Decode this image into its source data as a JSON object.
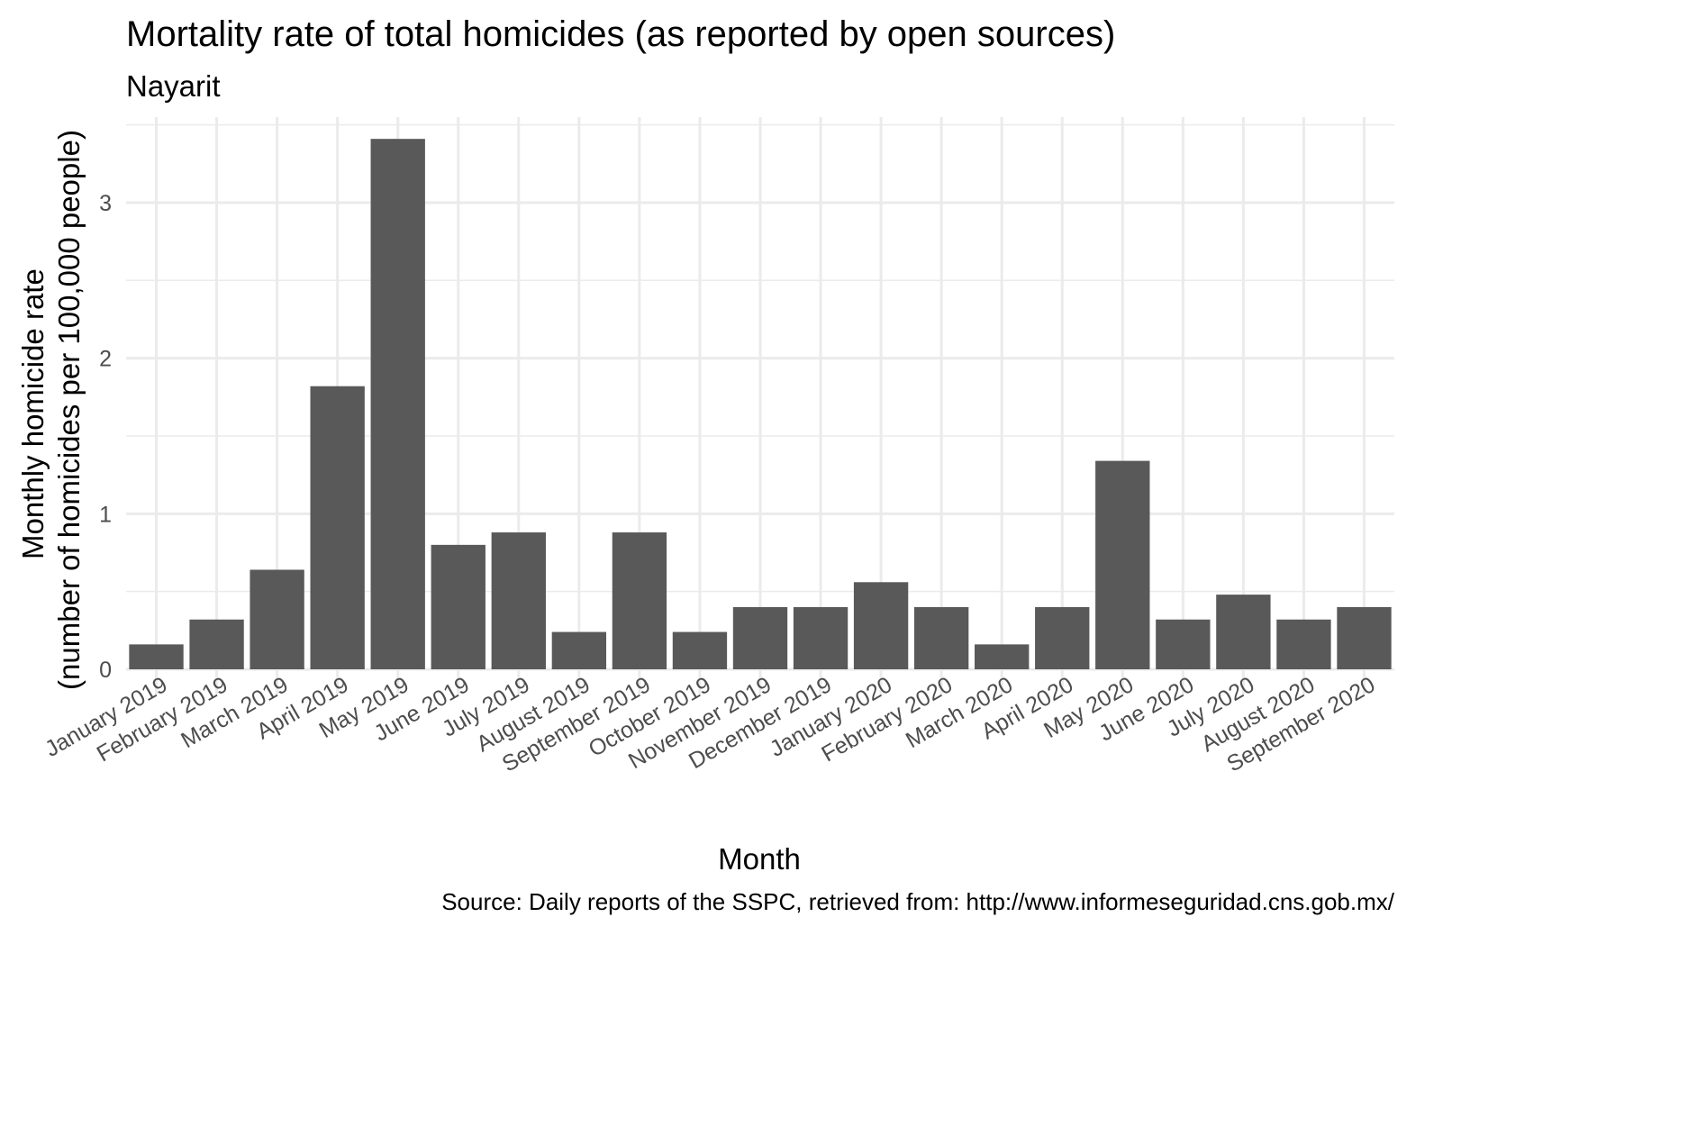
{
  "chart_data": {
    "type": "bar",
    "title": "Mortality rate of total homicides (as reported by open sources)",
    "subtitle": "Nayarit",
    "xlabel": "Month",
    "ylabel_lines": [
      "Monthly homicide rate",
      "(number of homicides per 100,000 people)"
    ],
    "caption": "Source: Daily reports of the SSPC, retrieved from: http://www.informeseguridad.cns.gob.mx/",
    "categories": [
      "January 2019",
      "February 2019",
      "March 2019",
      "April 2019",
      "May 2019",
      "June 2019",
      "July 2019",
      "August 2019",
      "September 2019",
      "October 2019",
      "November 2019",
      "December 2019",
      "January 2020",
      "February 2020",
      "March 2020",
      "April 2020",
      "May 2020",
      "June 2020",
      "July 2020",
      "August 2020",
      "September 2020"
    ],
    "values": [
      0.16,
      0.32,
      0.64,
      1.82,
      3.41,
      0.8,
      0.88,
      0.24,
      0.88,
      0.24,
      0.4,
      0.4,
      0.56,
      0.4,
      0.16,
      0.4,
      1.34,
      0.32,
      0.48,
      0.32,
      0.4
    ],
    "ylim": [
      0,
      3.55
    ],
    "yticks": [
      0,
      1,
      2,
      3
    ],
    "grid": true,
    "bar_color": "#595959",
    "grid_color": "#ebebeb"
  }
}
